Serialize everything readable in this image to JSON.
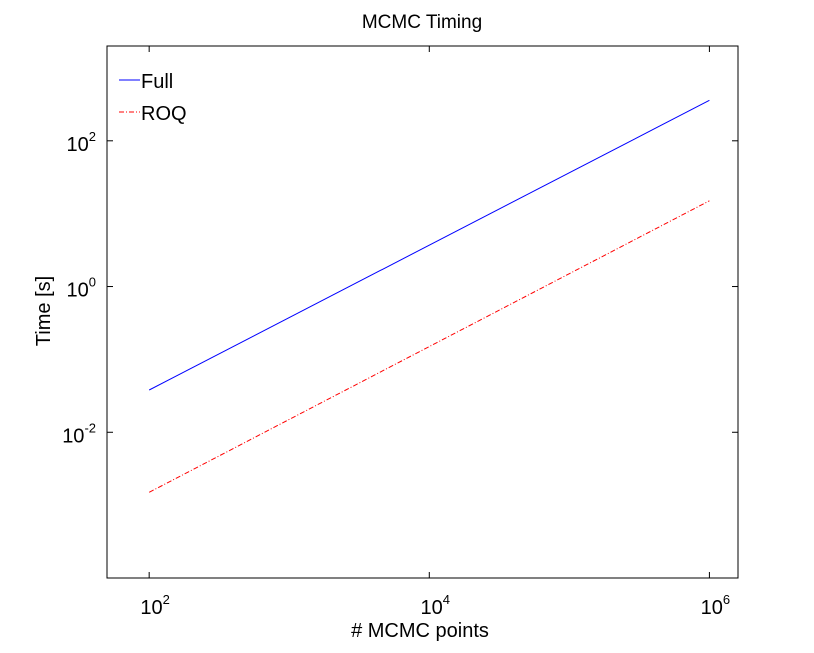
{
  "chart_data": {
    "type": "line",
    "title": "MCMC Timing",
    "xlabel": "# MCMC points",
    "ylabel": "Time [s]",
    "x_scale": "log",
    "y_scale": "log",
    "xlim": [
      50,
      1600000
    ],
    "ylim": [
      0.0001,
      2000
    ],
    "x_ticks": [
      {
        "value": 100,
        "base": "10",
        "exp": "2"
      },
      {
        "value": 10000,
        "base": "10",
        "exp": "4"
      },
      {
        "value": 1000000,
        "base": "10",
        "exp": "6"
      }
    ],
    "y_ticks": [
      {
        "value": 0.01,
        "base": "10",
        "exp": "-2"
      },
      {
        "value": 1,
        "base": "10",
        "exp": "0"
      },
      {
        "value": 100,
        "base": "10",
        "exp": "2"
      }
    ],
    "grid": false,
    "legend_position": "top-left",
    "series": [
      {
        "name": "Full",
        "color": "#0000ff",
        "style": "solid",
        "x": [
          100,
          1000000
        ],
        "y": [
          0.038,
          360
        ]
      },
      {
        "name": "ROQ",
        "color": "#ff0000",
        "style": "dash-dot",
        "x": [
          100,
          1000000
        ],
        "y": [
          0.0015,
          15
        ]
      }
    ]
  }
}
